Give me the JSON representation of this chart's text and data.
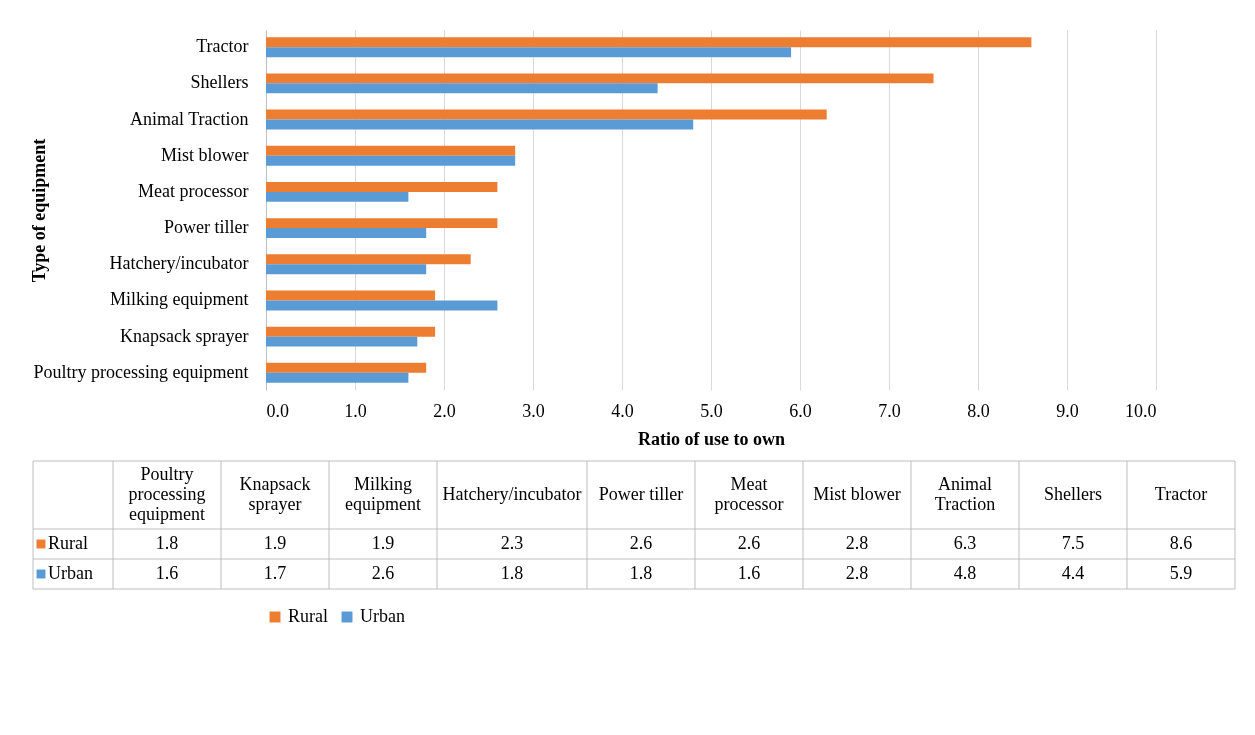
{
  "chart_data": [
    {
      "type": "bar",
      "orientation": "horizontal",
      "xlabel": "Ratio of use to own",
      "ylabel": "Type of equipment",
      "categories": [
        "Tractor",
        "Shellers",
        "Animal Traction",
        "Mist blower",
        "Meat processor",
        "Power tiller",
        "Hatchery/incubator",
        "Milking equipment",
        "Knapsack sprayer",
        "Poultry processing equipment"
      ],
      "series": [
        {
          "name": "Rural",
          "color": "#ed7d31",
          "values": [
            8.6,
            7.5,
            6.3,
            2.8,
            2.6,
            2.6,
            2.3,
            1.9,
            1.9,
            1.8
          ]
        },
        {
          "name": "Urban",
          "color": "#5b9bd5",
          "values": [
            5.9,
            4.4,
            4.8,
            2.8,
            1.6,
            1.8,
            1.8,
            2.6,
            1.7,
            1.6
          ]
        }
      ],
      "xlim": [
        0,
        10
      ],
      "xticks": [
        {
          "value": 0,
          "label": "0.0"
        },
        {
          "value": 1,
          "label": "1.0"
        },
        {
          "value": 2,
          "label": "2.0"
        },
        {
          "value": 3,
          "label": "3.0"
        },
        {
          "value": 4,
          "label": "4.0"
        },
        {
          "value": 5,
          "label": "5.0"
        },
        {
          "value": 6,
          "label": "6.0"
        },
        {
          "value": 7,
          "label": "7.0"
        },
        {
          "value": 8,
          "label": "8.0"
        },
        {
          "value": 9,
          "label": "9.0"
        },
        {
          "value": 10,
          "label": "10.0"
        }
      ],
      "grid": "x",
      "legend": "bottom"
    },
    {
      "type": "other",
      "data_labels": true,
      "categories": [
        "Poultry processing equipment",
        "Knapsack sprayer",
        "Milking equipment",
        "Hatchery/incubator",
        "Power tiller",
        "Meat processor",
        "Mist blower",
        "Animal Traction",
        "Shellers",
        "Tractor"
      ],
      "series": [
        {
          "name": "Rural",
          "color": "#ed7d31",
          "values": [
            1.8,
            1.9,
            1.9,
            2.3,
            2.6,
            2.6,
            2.8,
            6.3,
            7.5,
            8.6
          ]
        },
        {
          "name": "Urban",
          "color": "#5b9bd5",
          "values": [
            1.6,
            1.7,
            2.6,
            1.8,
            1.8,
            1.6,
            2.8,
            4.8,
            4.4,
            5.9
          ]
        }
      ]
    }
  ]
}
